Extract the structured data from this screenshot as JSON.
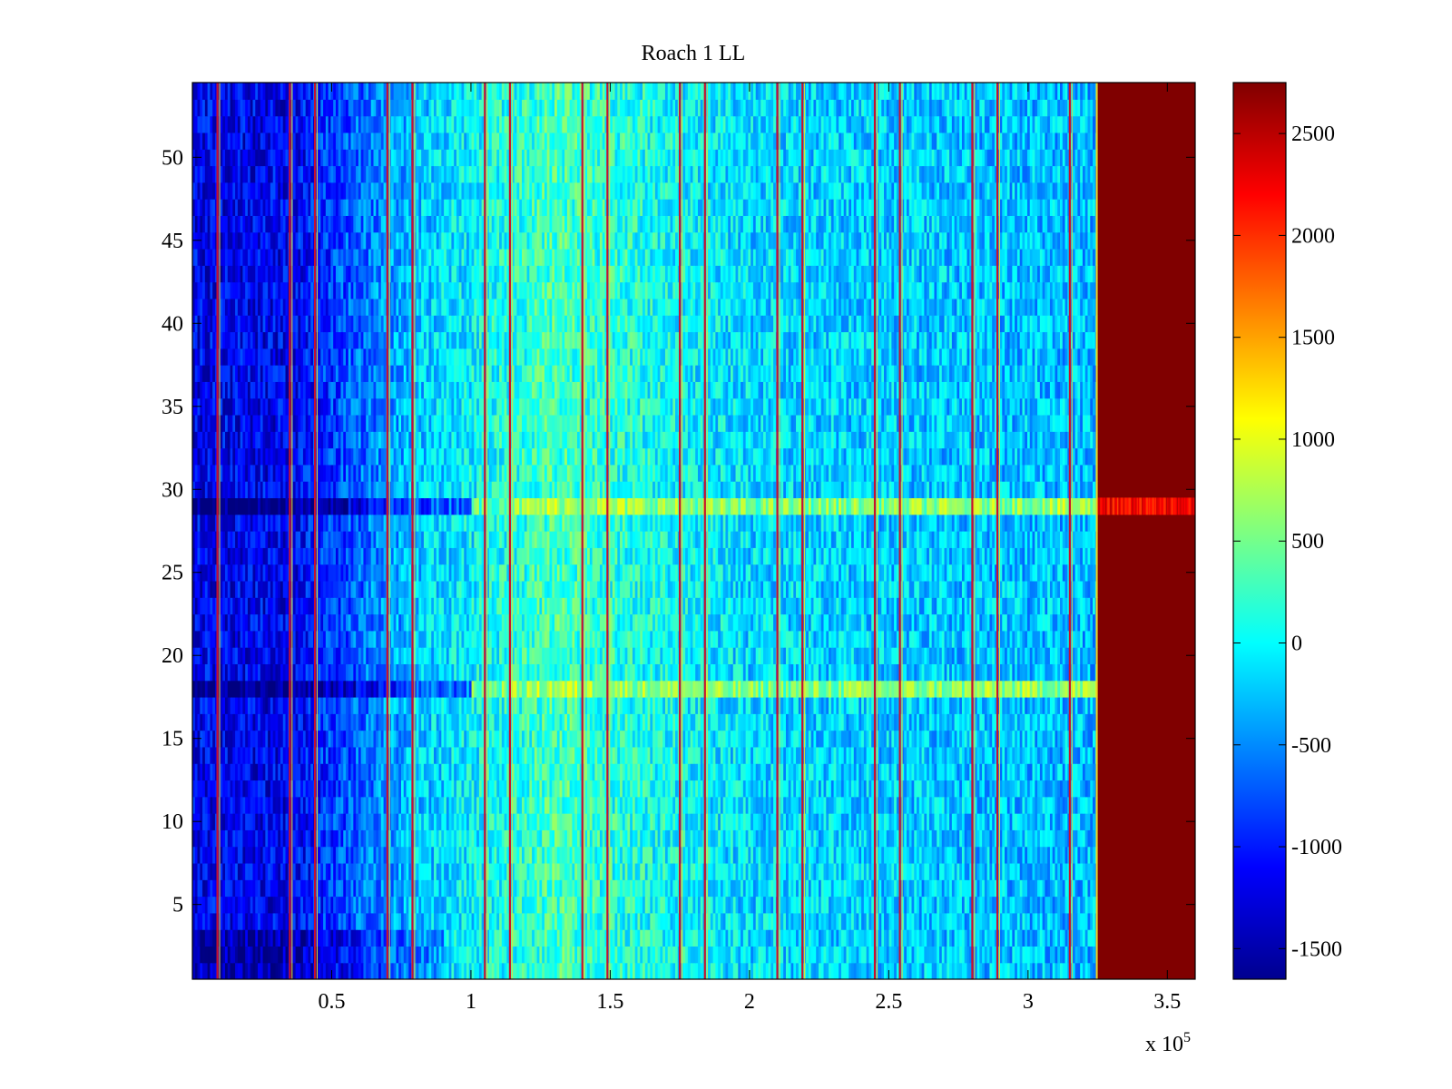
{
  "chart_data": {
    "type": "heatmap",
    "title": "Roach 1 LL",
    "xlabel": "",
    "ylabel": "",
    "x_exponent_label": {
      "base": "x 10",
      "exp": "5"
    },
    "xlim": [
      0,
      3.6
    ],
    "ylim": [
      0.5,
      54.5
    ],
    "x_ticks": [
      0.5,
      1,
      1.5,
      2,
      2.5,
      3,
      3.5
    ],
    "y_ticks": [
      5,
      10,
      15,
      20,
      25,
      30,
      35,
      40,
      45,
      50
    ],
    "x_tick_labels": [
      "0.5",
      "1",
      "1.5",
      "2",
      "2.5",
      "3",
      "3.5"
    ],
    "y_tick_labels": [
      "5",
      "10",
      "15",
      "20",
      "25",
      "30",
      "35",
      "40",
      "45",
      "50"
    ],
    "rows": 54,
    "saturation_start_x": 3.25,
    "bright_rows": [
      18,
      29
    ],
    "red_lines_x": [
      0.09,
      0.35,
      0.44,
      0.7,
      0.79,
      1.05,
      1.14,
      1.4,
      1.49,
      1.75,
      1.84,
      2.1,
      2.19,
      2.45,
      2.54,
      2.8,
      2.89,
      3.15
    ],
    "colorbar": {
      "min": -1650,
      "max": 2750,
      "ticks": [
        -1500,
        -1000,
        -500,
        0,
        500,
        1000,
        1500,
        2000,
        2500
      ],
      "tick_labels": [
        "-1500",
        "-1000",
        "-500",
        "0",
        "500",
        "1000",
        "1500",
        "2000",
        "2500"
      ],
      "colormap": "jet"
    },
    "grid": false
  }
}
